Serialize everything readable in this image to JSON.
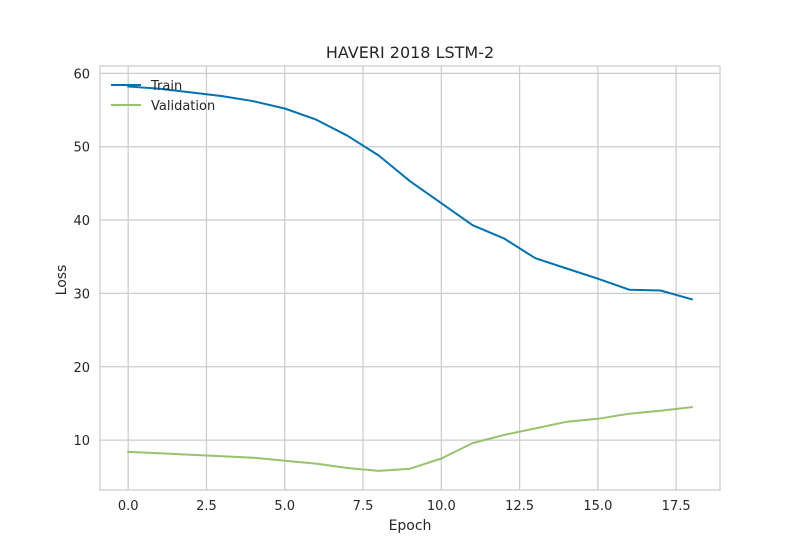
{
  "chart_data": {
    "type": "line",
    "title": "HAVERI 2018 LSTM-2",
    "xlabel": "Epoch",
    "ylabel": "Loss",
    "xlim": [
      -0.9,
      18.9
    ],
    "ylim": [
      3.2,
      61.0
    ],
    "x_ticks": [
      0.0,
      2.5,
      5.0,
      7.5,
      10.0,
      12.5,
      15.0,
      17.5
    ],
    "x_tick_labels": [
      "0.0",
      "2.5",
      "5.0",
      "7.5",
      "10.0",
      "12.5",
      "15.0",
      "17.5"
    ],
    "y_ticks": [
      10,
      20,
      30,
      40,
      50,
      60
    ],
    "y_tick_labels": [
      "10",
      "20",
      "30",
      "40",
      "50",
      "60"
    ],
    "grid": true,
    "legend_position": "top-left",
    "x": [
      0,
      1,
      2,
      3,
      4,
      5,
      6,
      7,
      8,
      9,
      10,
      11,
      12,
      13,
      14,
      15,
      16,
      17,
      18
    ],
    "series": [
      {
        "name": "Train",
        "color": "#0072B2",
        "values": [
          58.2,
          57.9,
          57.4,
          56.9,
          56.2,
          55.2,
          53.7,
          51.5,
          48.8,
          45.3,
          42.3,
          39.3,
          37.5,
          34.8,
          33.4,
          32.0,
          30.5,
          30.4,
          29.2
        ]
      },
      {
        "name": "Validation",
        "color": "#97C36F",
        "values": [
          8.4,
          8.2,
          8.0,
          7.8,
          7.6,
          7.2,
          6.8,
          6.2,
          5.8,
          6.1,
          7.5,
          9.6,
          10.7,
          11.6,
          12.5,
          12.9,
          13.6,
          14.0,
          14.5
        ]
      }
    ]
  }
}
